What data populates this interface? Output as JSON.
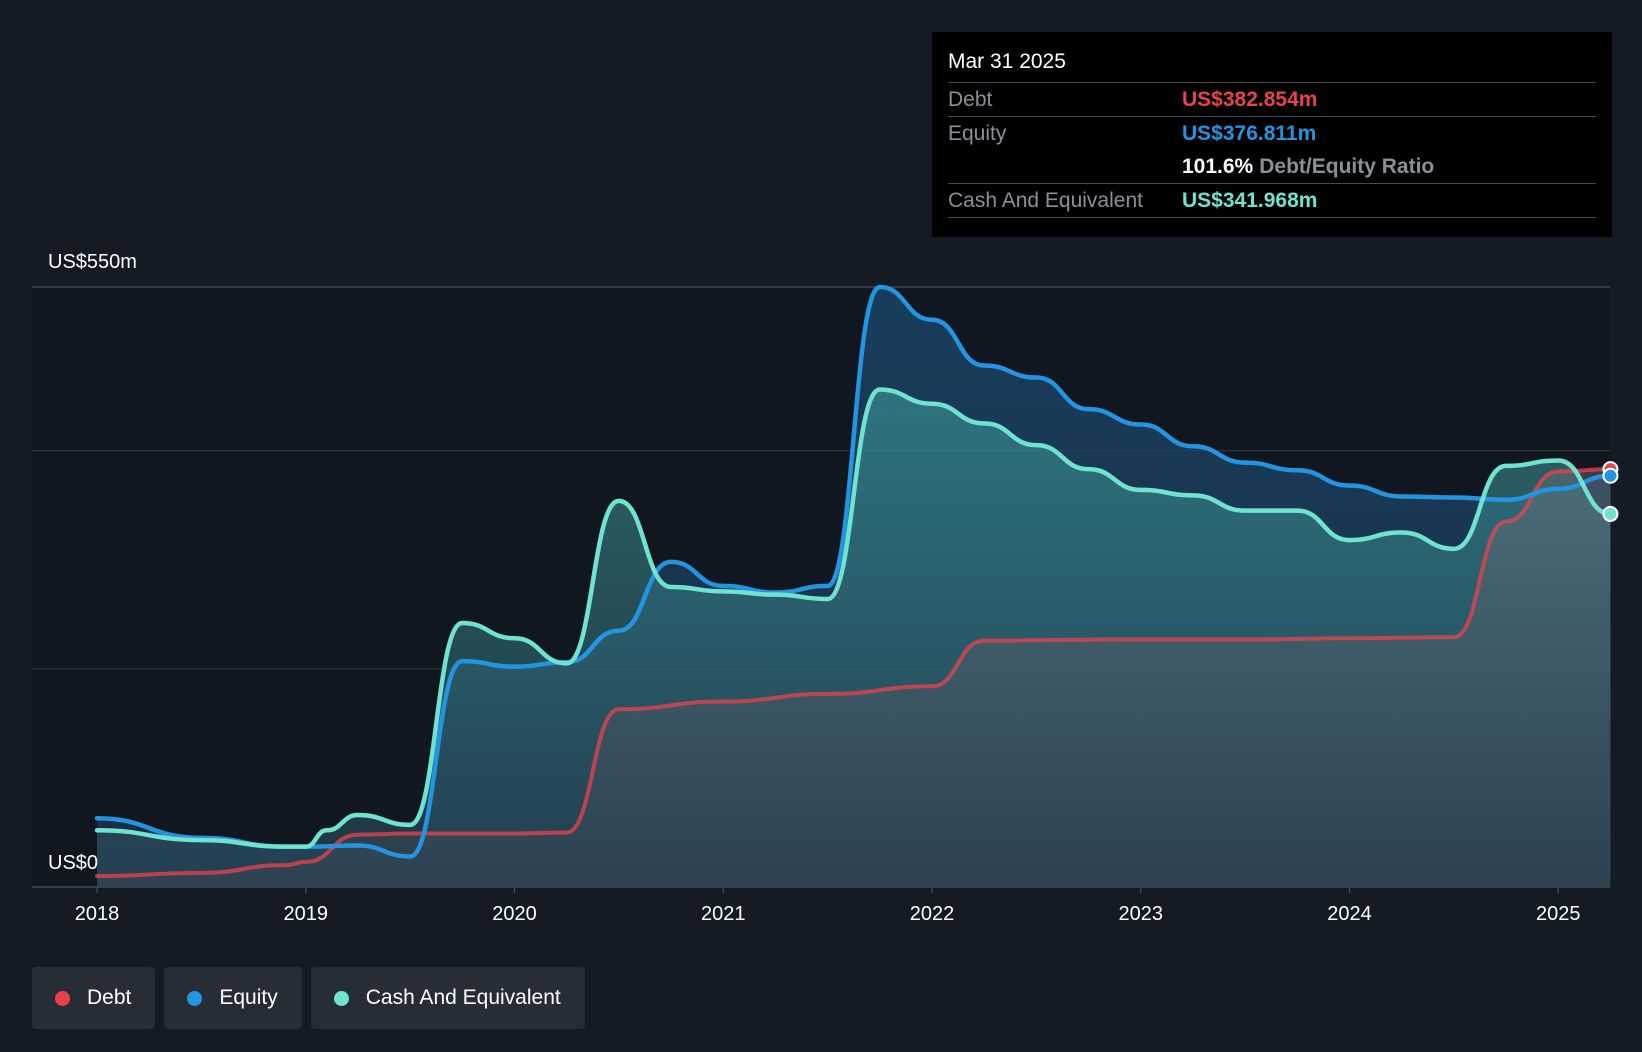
{
  "chart_data": {
    "type": "area",
    "y_axis": {
      "top_label": "US$550m",
      "bottom_label": "US$0",
      "ylim": [
        0,
        550
      ]
    },
    "x_ticks": [
      "2018",
      "2019",
      "2020",
      "2021",
      "2022",
      "2023",
      "2024",
      "2025"
    ],
    "xlim": [
      2018.0,
      2025.25
    ],
    "series": [
      {
        "name": "Cash And Equivalent",
        "key": "cash",
        "color": "#6fe3d0",
        "points": [
          [
            2018.0,
            52
          ],
          [
            2018.5,
            43
          ],
          [
            2018.9,
            37
          ],
          [
            2019.0,
            37
          ],
          [
            2019.1,
            52
          ],
          [
            2019.25,
            66
          ],
          [
            2019.5,
            57
          ],
          [
            2019.75,
            242
          ],
          [
            2020.0,
            228
          ],
          [
            2020.25,
            205
          ],
          [
            2020.5,
            354
          ],
          [
            2020.75,
            275
          ],
          [
            2021.0,
            271
          ],
          [
            2021.25,
            268
          ],
          [
            2021.5,
            264
          ],
          [
            2021.75,
            456
          ],
          [
            2022.0,
            443
          ],
          [
            2022.25,
            425
          ],
          [
            2022.5,
            405
          ],
          [
            2022.75,
            383
          ],
          [
            2023.0,
            364
          ],
          [
            2023.25,
            359
          ],
          [
            2023.5,
            345
          ],
          [
            2023.75,
            345
          ],
          [
            2024.0,
            318
          ],
          [
            2024.25,
            325
          ],
          [
            2024.5,
            310
          ],
          [
            2024.75,
            386
          ],
          [
            2025.0,
            391
          ],
          [
            2025.25,
            342
          ]
        ]
      },
      {
        "name": "Equity",
        "key": "equity",
        "color": "#2394df",
        "points": [
          [
            2018.0,
            63
          ],
          [
            2018.5,
            45
          ],
          [
            2018.9,
            37
          ],
          [
            2019.0,
            37
          ],
          [
            2019.25,
            38
          ],
          [
            2019.5,
            28
          ],
          [
            2019.75,
            207
          ],
          [
            2020.0,
            202
          ],
          [
            2020.25,
            206
          ],
          [
            2020.5,
            235
          ],
          [
            2020.75,
            298
          ],
          [
            2021.0,
            276
          ],
          [
            2021.25,
            270
          ],
          [
            2021.5,
            276
          ],
          [
            2021.75,
            550
          ],
          [
            2022.0,
            520
          ],
          [
            2022.25,
            478
          ],
          [
            2022.5,
            467
          ],
          [
            2022.75,
            438
          ],
          [
            2023.0,
            424
          ],
          [
            2023.25,
            404
          ],
          [
            2023.5,
            389
          ],
          [
            2023.75,
            382
          ],
          [
            2024.0,
            368
          ],
          [
            2024.25,
            358
          ],
          [
            2024.5,
            357
          ],
          [
            2024.75,
            355
          ],
          [
            2025.0,
            365
          ],
          [
            2025.25,
            377
          ]
        ]
      },
      {
        "name": "Debt",
        "key": "debt",
        "color": "#e8434d",
        "points": [
          [
            2018.0,
            10
          ],
          [
            2018.5,
            13
          ],
          [
            2018.9,
            20
          ],
          [
            2019.0,
            23
          ],
          [
            2019.25,
            48
          ],
          [
            2019.5,
            49
          ],
          [
            2020.0,
            49
          ],
          [
            2020.25,
            50
          ],
          [
            2020.5,
            163
          ],
          [
            2021.0,
            170
          ],
          [
            2021.5,
            177
          ],
          [
            2022.0,
            184
          ],
          [
            2022.25,
            226
          ],
          [
            2023.0,
            227
          ],
          [
            2023.5,
            227
          ],
          [
            2024.0,
            228
          ],
          [
            2024.5,
            229
          ],
          [
            2024.75,
            335
          ],
          [
            2025.0,
            381
          ],
          [
            2025.25,
            383
          ]
        ]
      }
    ],
    "grid": true
  },
  "tooltip": {
    "date": "Mar 31 2025",
    "debt_label": "Debt",
    "debt_value": "US$382.854m",
    "equity_label": "Equity",
    "equity_value": "US$376.811m",
    "ratio_value": "101.6%",
    "ratio_label": "Debt/Equity Ratio",
    "cash_label": "Cash And Equivalent",
    "cash_value": "US$341.968m"
  },
  "legend": [
    {
      "label": "Debt",
      "color": "#e8434d"
    },
    {
      "label": "Equity",
      "color": "#2394df"
    },
    {
      "label": "Cash And Equivalent",
      "color": "#6fe3d0"
    }
  ]
}
